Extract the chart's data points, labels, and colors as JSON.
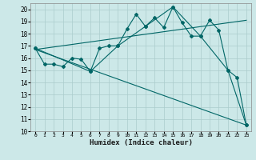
{
  "xlabel": "Humidex (Indice chaleur)",
  "bg_color": "#cce8e8",
  "grid_color": "#aacccc",
  "line_color": "#006666",
  "xlim": [
    -0.5,
    23.5
  ],
  "ylim": [
    10,
    20.5
  ],
  "yticks": [
    10,
    11,
    12,
    13,
    14,
    15,
    16,
    17,
    18,
    19,
    20
  ],
  "xticks": [
    0,
    1,
    2,
    3,
    4,
    5,
    6,
    7,
    8,
    9,
    10,
    11,
    12,
    13,
    14,
    15,
    16,
    17,
    18,
    19,
    20,
    21,
    22,
    23
  ],
  "series1_x": [
    0,
    1,
    2,
    3,
    4,
    5,
    6,
    7,
    8,
    9,
    10,
    11,
    12,
    13,
    14,
    15,
    16,
    17,
    18,
    19,
    20,
    21,
    22,
    23
  ],
  "series1_y": [
    16.8,
    15.5,
    15.5,
    15.3,
    16.0,
    15.9,
    14.9,
    16.8,
    17.0,
    17.0,
    18.4,
    19.6,
    18.6,
    19.3,
    18.5,
    20.2,
    18.9,
    17.8,
    17.8,
    19.1,
    18.3,
    15.0,
    14.4,
    10.5
  ],
  "series2_x": [
    0,
    6,
    9,
    12,
    15,
    18,
    21,
    23
  ],
  "series2_y": [
    16.8,
    14.9,
    17.0,
    18.6,
    20.2,
    17.8,
    15.0,
    10.5
  ],
  "line3_x": [
    0,
    23
  ],
  "line3_y": [
    16.7,
    19.1
  ],
  "line4_x": [
    0,
    23
  ],
  "line4_y": [
    16.7,
    10.5
  ]
}
